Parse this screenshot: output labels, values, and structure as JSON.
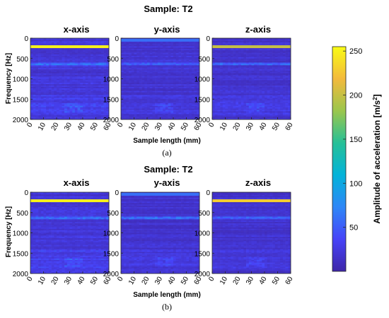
{
  "chart_data": [
    {
      "type": "heatmap",
      "panel_label": "(a)",
      "title": "Sample: T2",
      "xlabel": "Sample length (mm)",
      "ylabel": "Frequency [Hz]",
      "xlim": [
        0,
        60
      ],
      "ylim": [
        2000,
        0
      ],
      "xticks": [
        "0",
        "10",
        "20",
        "30",
        "40",
        "50",
        "60"
      ],
      "yticks": [
        "0",
        "500",
        "1000",
        "1500",
        "2000"
      ],
      "subplots": [
        {
          "title": "x-axis",
          "peak_band_hz": 210,
          "peak_amplitude": 250,
          "secondary_band_hz": 640,
          "background_amplitude": 20
        },
        {
          "title": "y-axis",
          "peak_band_hz": 50,
          "peak_amplitude": 60,
          "secondary_band_hz": 640,
          "background_amplitude": 15
        },
        {
          "title": "z-axis",
          "peak_band_hz": 210,
          "peak_amplitude": 200,
          "secondary_band_hz": 640,
          "background_amplitude": 15
        }
      ]
    },
    {
      "type": "heatmap",
      "panel_label": "(b)",
      "title": "Sample: T2",
      "xlabel": "Sample length (mm)",
      "ylabel": "Frequency [Hz]",
      "xlim": [
        0,
        60
      ],
      "ylim": [
        2000,
        0
      ],
      "xticks": [
        "0",
        "10",
        "20",
        "30",
        "40",
        "50",
        "60"
      ],
      "yticks": [
        "0",
        "500",
        "1000",
        "1500",
        "2000"
      ],
      "subplots": [
        {
          "title": "x-axis",
          "peak_band_hz": 210,
          "peak_amplitude": 250,
          "secondary_band_hz": 640,
          "background_amplitude": 20
        },
        {
          "title": "y-axis",
          "peak_band_hz": 50,
          "peak_amplitude": 60,
          "secondary_band_hz": 640,
          "background_amplitude": 15
        },
        {
          "title": "z-axis",
          "peak_band_hz": 210,
          "peak_amplitude": 230,
          "secondary_band_hz": 640,
          "background_amplitude": 15
        }
      ]
    }
  ],
  "colorbar": {
    "label_main": "Amplitude of acceleration [m/s",
    "label_sup": "2",
    "label_end": "]",
    "range": [
      0,
      255
    ],
    "ticks": [
      "50",
      "100",
      "150",
      "200",
      "250"
    ],
    "colormap": [
      "#3e26a8",
      "#4743f8",
      "#2e87f7",
      "#03b3d9",
      "#26c097",
      "#9bc64c",
      "#f3ba3c",
      "#f9fb15"
    ]
  }
}
